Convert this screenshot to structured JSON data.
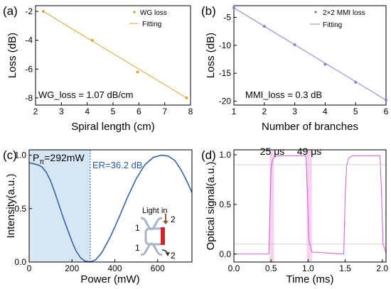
{
  "chart_data": [
    {
      "panel_label": "(a)",
      "type": "scatter",
      "xlabel": "Spiral length (cm)",
      "ylabel": "Loss (dB)",
      "xlim": [
        2,
        8
      ],
      "ylim": [
        -8.5,
        -1.6
      ],
      "xticks": [
        2,
        3,
        4,
        5,
        6,
        7,
        8
      ],
      "yticks": [
        -2,
        -4,
        -6,
        -8
      ],
      "color": "#d4a838",
      "series": [
        {
          "name": "WG loss",
          "kind": "points",
          "x": [
            2.3,
            4.2,
            5.95,
            7.85
          ],
          "y": [
            -2.0,
            -4.0,
            -6.2,
            -8.0
          ]
        },
        {
          "name": "Fitting",
          "kind": "line",
          "x": [
            2.3,
            7.85
          ],
          "y": [
            -2.0,
            -8.0
          ]
        }
      ],
      "annotation": "WG_loss = 1.07 dB/cm",
      "legend": "top-right"
    },
    {
      "panel_label": "(b)",
      "type": "scatter",
      "xlabel": "Number of branches",
      "ylabel": "Loss (dB)",
      "xlim": [
        1,
        6
      ],
      "ylim": [
        -20.7,
        -2.9
      ],
      "xticks": [
        1,
        2,
        3,
        4,
        5,
        6
      ],
      "yticks": [
        -5,
        -10,
        -15,
        -20
      ],
      "color": "#8f7fcc",
      "series": [
        {
          "name": "2×2 MMI loss",
          "kind": "points",
          "x": [
            1,
            2,
            3,
            4,
            5,
            6
          ],
          "y": [
            -3.3,
            -6.6,
            -9.9,
            -13.4,
            -16.6,
            -19.8
          ]
        },
        {
          "name": "Fitting",
          "kind": "line",
          "x": [
            1,
            6
          ],
          "y": [
            -3.3,
            -19.8
          ]
        }
      ],
      "annotation": "MMI_loss = 0.3 dB",
      "legend": "top-right"
    },
    {
      "panel_label": "(c)",
      "type": "line",
      "xlabel": "Power (mW)",
      "ylabel": "Intensity(a.u.)",
      "xlim": [
        0,
        760
      ],
      "ylim": [
        0,
        1.05
      ],
      "xticks": [
        0,
        200,
        400,
        600
      ],
      "yticks": [
        0.0,
        0.5,
        1.0
      ],
      "color": "#2a5aa0",
      "shade_range": [
        0,
        285
      ],
      "marker_x": 285,
      "series": [
        {
          "name": "",
          "kind": "line",
          "x": [
            0,
            20,
            40,
            60,
            80,
            100,
            120,
            140,
            160,
            180,
            200,
            220,
            240,
            260,
            285,
            310,
            340,
            380,
            420,
            460,
            500,
            540,
            580,
            620,
            650,
            680,
            710,
            740,
            760
          ],
          "y": [
            0.93,
            0.92,
            0.91,
            0.89,
            0.84,
            0.76,
            0.65,
            0.53,
            0.41,
            0.3,
            0.19,
            0.1,
            0.04,
            0.01,
            0.0,
            0.02,
            0.09,
            0.24,
            0.42,
            0.61,
            0.78,
            0.91,
            0.98,
            1.0,
            0.99,
            0.95,
            0.86,
            0.74,
            0.65
          ]
        }
      ],
      "annotations": {
        "p_pi_main": "P",
        "p_pi_sub": "π",
        "p_pi_value": "=292mW",
        "er": "ER=36.2 dB"
      },
      "inset": {
        "title": "Light in",
        "port_top_left": "1",
        "port_top_right": "2",
        "port_bottom_left": "1",
        "port_bottom_right": "2"
      }
    },
    {
      "panel_label": "(d)",
      "type": "line",
      "xlabel": "Time (ms)",
      "ylabel": "Optical signal(a.u.)",
      "xlim": [
        0,
        2.05
      ],
      "ylim": [
        -0.08,
        1.05
      ],
      "xticks": [
        0.0,
        0.5,
        1.0,
        1.5,
        2.0
      ],
      "yticks": [
        0.0,
        0.5,
        1.0
      ],
      "color": "#d45ad4",
      "highlight_ranges": [
        [
          0.48,
          0.54
        ],
        [
          0.98,
          1.05
        ]
      ],
      "reference_lines_y": [
        0.9,
        0.1
      ],
      "series": [
        {
          "name": "",
          "kind": "line",
          "x": [
            0.0,
            0.47,
            0.49,
            0.5,
            0.52,
            0.55,
            0.6,
            0.97,
            0.99,
            1.01,
            1.05,
            1.48,
            1.5,
            1.52,
            1.55,
            1.6,
            1.97,
            1.99,
            2.01,
            2.05
          ],
          "y": [
            0.0,
            0.0,
            0.55,
            0.85,
            0.95,
            0.98,
            0.99,
            0.99,
            0.65,
            0.15,
            0.02,
            0.0,
            0.6,
            0.9,
            0.97,
            0.99,
            0.99,
            0.6,
            0.1,
            0.01
          ]
        }
      ],
      "annotations": {
        "rise": "25 μs",
        "fall": "49 μs"
      }
    }
  ]
}
